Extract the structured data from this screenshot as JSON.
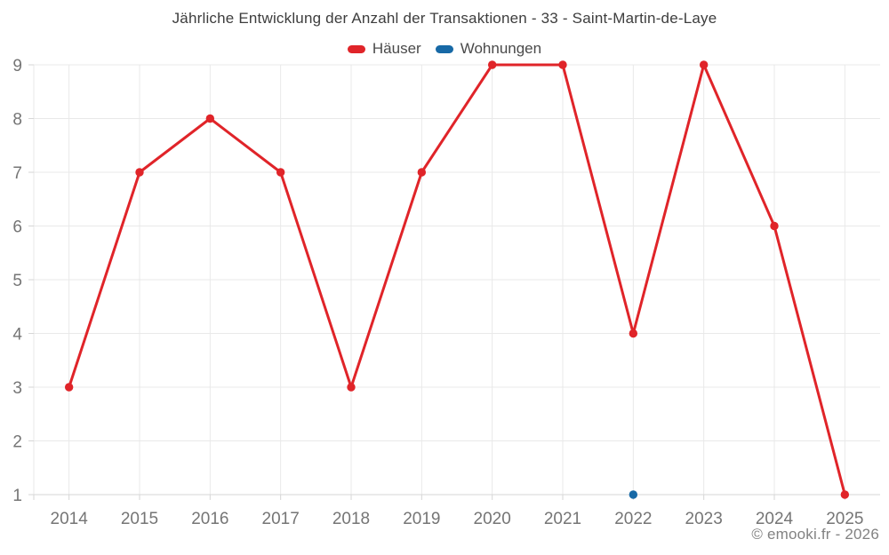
{
  "chart_data": {
    "type": "line",
    "title": "Jährliche Entwicklung der Anzahl der Transaktionen - 33 - Saint-Martin-de-Laye",
    "xlabel": "",
    "ylabel": "",
    "categories": [
      "2014",
      "2015",
      "2016",
      "2017",
      "2018",
      "2019",
      "2020",
      "2021",
      "2022",
      "2023",
      "2024",
      "2025"
    ],
    "series": [
      {
        "name": "Häuser",
        "color": "#e02429",
        "values": [
          3,
          7,
          8,
          7,
          3,
          7,
          9,
          9,
          4,
          9,
          6,
          1
        ]
      },
      {
        "name": "Wohnungen",
        "color": "#1769a6",
        "values": [
          null,
          null,
          null,
          null,
          null,
          null,
          null,
          null,
          1,
          null,
          null,
          null
        ]
      }
    ],
    "ylim": [
      1,
      9
    ],
    "yticks": [
      1,
      2,
      3,
      4,
      5,
      6,
      7,
      8,
      9
    ],
    "grid": true,
    "legend_position": "top",
    "watermark": "© emooki.fr - 2026",
    "colors": {
      "background": "#ffffff",
      "grid": "#e9e9e9",
      "axis": "#d6d6d6",
      "tick_label": "#757575",
      "title": "#3d3d3d",
      "legend_label": "#4a4a4a",
      "watermark": "#828282"
    }
  }
}
